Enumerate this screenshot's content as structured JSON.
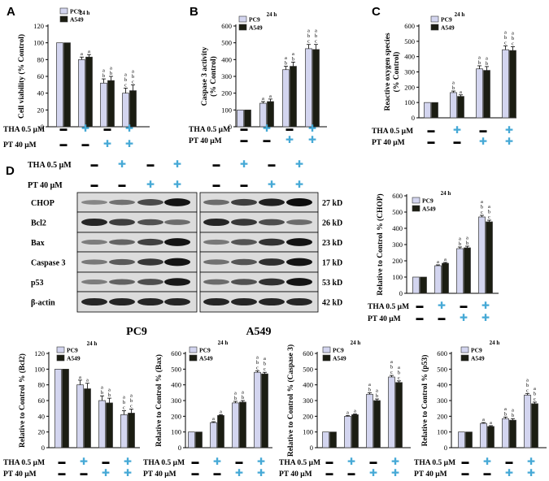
{
  "panel_labels": [
    "A",
    "B",
    "C",
    "D"
  ],
  "conditions": {
    "tha_label": "THA 0.5 μM",
    "pt_label": "PT 40 μM",
    "minus": "▬",
    "plus": "✚",
    "tha": [
      "-",
      "+",
      "-",
      "+"
    ],
    "pt": [
      "-",
      "-",
      "+",
      "+"
    ]
  },
  "legend": {
    "series": [
      "PC9",
      "A549"
    ]
  },
  "colors": {
    "pc9": "#d3d5ef",
    "a549": "#1b1d12",
    "plus": "#46a9d6",
    "minus": "#000000"
  },
  "blot": {
    "proteins": [
      "CHOP",
      "Bcl2",
      "Bax",
      "Caspase 3",
      "p53",
      "β-actin"
    ],
    "sizes": [
      "27 kD",
      "26 kD",
      "23 kD",
      "17 kD",
      "53 kD",
      "42 kD"
    ],
    "cell_lines": [
      "PC9",
      "A549"
    ],
    "intensity": {
      "PC9": [
        [
          0.3,
          0.42,
          0.65,
          0.95
        ],
        [
          0.85,
          0.72,
          0.6,
          0.45
        ],
        [
          0.35,
          0.5,
          0.7,
          0.95
        ],
        [
          0.38,
          0.55,
          0.75,
          0.95
        ],
        [
          0.35,
          0.5,
          0.62,
          0.92
        ],
        [
          0.85,
          0.85,
          0.85,
          0.85
        ]
      ],
      "A549": [
        [
          0.45,
          0.7,
          0.88,
          1.0
        ],
        [
          0.85,
          0.75,
          0.62,
          0.45
        ],
        [
          0.38,
          0.58,
          0.78,
          0.95
        ],
        [
          0.42,
          0.58,
          0.8,
          0.95
        ],
        [
          0.45,
          0.6,
          0.78,
          0.95
        ],
        [
          0.85,
          0.85,
          0.85,
          0.85
        ]
      ]
    }
  },
  "chart_data": [
    {
      "id": "A",
      "type": "bar",
      "title": "24 h",
      "xlabel": "",
      "ylabel": "Cell viability (% Control)",
      "ylim": [
        0,
        120
      ],
      "yticks": [
        "0",
        "20",
        "40",
        "60",
        "80",
        "100",
        "120"
      ],
      "series": [
        {
          "name": "PC9",
          "values": [
            100,
            80,
            52,
            40
          ],
          "errors": [
            0,
            3,
            5,
            6
          ],
          "letters": [
            [],
            [
              "a"
            ],
            [
              "a",
              "b"
            ],
            [
              "a",
              "b",
              "c"
            ]
          ]
        },
        {
          "name": "A549",
          "values": [
            100,
            83,
            55,
            43
          ],
          "errors": [
            0,
            3,
            5,
            7
          ],
          "letters": [
            [],
            [
              "a"
            ],
            [
              "a",
              "b"
            ],
            [
              "a",
              "b",
              "c"
            ]
          ]
        }
      ]
    },
    {
      "id": "B",
      "type": "bar",
      "title": "24 h",
      "xlabel": "",
      "ylabel": "Caspase 3 activity (% Control)",
      "ylim": [
        0,
        600
      ],
      "yticks": [
        "0",
        "100",
        "200",
        "300",
        "400",
        "500",
        "600"
      ],
      "series": [
        {
          "name": "PC9",
          "values": [
            100,
            140,
            340,
            465
          ],
          "errors": [
            0,
            10,
            20,
            25
          ],
          "letters": [
            [],
            [
              "a"
            ],
            [
              "a",
              "b"
            ],
            [
              "a",
              "b",
              "c"
            ]
          ]
        },
        {
          "name": "A549",
          "values": [
            100,
            150,
            360,
            460
          ],
          "errors": [
            0,
            15,
            25,
            30
          ],
          "letters": [
            [],
            [
              "a"
            ],
            [
              "a",
              "b"
            ],
            [
              "a",
              "b",
              "c"
            ]
          ]
        }
      ]
    },
    {
      "id": "C",
      "type": "bar",
      "title": "24 h",
      "xlabel": "",
      "ylabel": "Reactive oxygen species (% Control)",
      "ylim": [
        0,
        600
      ],
      "yticks": [
        "0",
        "100",
        "200",
        "300",
        "400",
        "500",
        "600"
      ],
      "series": [
        {
          "name": "PC9",
          "values": [
            100,
            165,
            320,
            445
          ],
          "errors": [
            0,
            10,
            20,
            25
          ],
          "letters": [
            [],
            [
              "a",
              "b"
            ],
            [
              "a",
              "b"
            ],
            [
              "a",
              "b",
              "c"
            ]
          ]
        },
        {
          "name": "A549",
          "values": [
            100,
            140,
            310,
            440
          ],
          "errors": [
            0,
            10,
            25,
            25
          ],
          "letters": [
            [],
            [
              "a"
            ],
            [
              "a",
              "b"
            ],
            [
              "a",
              "b",
              "c"
            ]
          ]
        }
      ]
    },
    {
      "id": "CHOP",
      "type": "bar",
      "title": "24 h",
      "xlabel": "",
      "ylabel": "Relative to Control % (CHOP)",
      "ylim": [
        0,
        600
      ],
      "yticks": [
        "0",
        "100",
        "200",
        "300",
        "400",
        "500",
        "600"
      ],
      "series": [
        {
          "name": "PC9",
          "values": [
            100,
            170,
            275,
            470
          ],
          "errors": [
            0,
            5,
            10,
            10
          ],
          "letters": [
            [],
            [
              "a"
            ],
            [
              "a",
              "b"
            ],
            [
              "a",
              "b",
              "c"
            ]
          ]
        },
        {
          "name": "A549",
          "values": [
            100,
            185,
            280,
            440
          ],
          "errors": [
            0,
            5,
            10,
            10
          ],
          "letters": [
            [],
            [
              "a"
            ],
            [
              "a",
              "b"
            ],
            [
              "a",
              "b",
              "c"
            ]
          ]
        }
      ]
    },
    {
      "id": "Bcl2",
      "type": "bar",
      "title": "24 h",
      "xlabel": "",
      "ylabel": "Relative to Control % (Bcl2)",
      "ylim": [
        0,
        120
      ],
      "yticks": [
        "0",
        "20",
        "40",
        "60",
        "80",
        "100",
        "120"
      ],
      "series": [
        {
          "name": "PC9",
          "values": [
            100,
            80,
            60,
            42
          ],
          "errors": [
            0,
            6,
            6,
            5
          ],
          "letters": [
            [],
            [
              "a"
            ],
            [
              "a",
              "b"
            ],
            [
              "a",
              "b",
              "c"
            ]
          ]
        },
        {
          "name": "A549",
          "values": [
            100,
            75,
            57,
            44
          ],
          "errors": [
            0,
            7,
            6,
            5
          ],
          "letters": [
            [],
            [
              "a"
            ],
            [
              "a",
              "b"
            ],
            [
              "a",
              "b",
              "c"
            ]
          ]
        }
      ]
    },
    {
      "id": "Bax",
      "type": "bar",
      "title": "24 h",
      "xlabel": "",
      "ylabel": "Relative to Control % (Bax)",
      "ylim": [
        0,
        600
      ],
      "yticks": [
        "0",
        "100",
        "200",
        "300",
        "400",
        "500",
        "600"
      ],
      "series": [
        {
          "name": "PC9",
          "values": [
            100,
            160,
            285,
            480
          ],
          "errors": [
            0,
            5,
            10,
            10
          ],
          "letters": [
            [],
            [
              "a"
            ],
            [
              "a",
              "b"
            ],
            [
              "a",
              "b",
              "c"
            ]
          ]
        },
        {
          "name": "A549",
          "values": [
            100,
            205,
            290,
            470
          ],
          "errors": [
            0,
            5,
            10,
            10
          ],
          "letters": [
            [],
            [
              "a"
            ],
            [
              "a",
              "b"
            ],
            [
              "a",
              "b",
              "c"
            ]
          ]
        }
      ]
    },
    {
      "id": "Caspase3",
      "type": "bar",
      "title": "24 h",
      "xlabel": "",
      "ylabel": "Relative to Control % (Caspase 3)",
      "ylim": [
        0,
        600
      ],
      "yticks": [
        "0",
        "100",
        "200",
        "300",
        "400",
        "500",
        "600"
      ],
      "series": [
        {
          "name": "PC9",
          "values": [
            100,
            200,
            340,
            450
          ],
          "errors": [
            0,
            5,
            10,
            10
          ],
          "letters": [
            [],
            [
              "a"
            ],
            [
              "a",
              "b"
            ],
            [
              "a",
              "b",
              "c"
            ]
          ]
        },
        {
          "name": "A549",
          "values": [
            100,
            210,
            300,
            415
          ],
          "errors": [
            0,
            5,
            10,
            10
          ],
          "letters": [
            [],
            [
              "a"
            ],
            [
              "a",
              "b"
            ],
            [
              "a",
              "b",
              "c"
            ]
          ]
        }
      ]
    },
    {
      "id": "p53",
      "type": "bar",
      "title": "24 h",
      "xlabel": "",
      "ylabel": "Relative to Control % (p53)",
      "ylim": [
        0,
        600
      ],
      "yticks": [
        "0",
        "100",
        "200",
        "300",
        "400",
        "500",
        "600"
      ],
      "series": [
        {
          "name": "PC9",
          "values": [
            100,
            155,
            185,
            335
          ],
          "errors": [
            0,
            5,
            10,
            10
          ],
          "letters": [
            [],
            [
              "a"
            ],
            [
              "a",
              "b"
            ],
            [
              "a",
              "b",
              "c"
            ]
          ]
        },
        {
          "name": "A549",
          "values": [
            100,
            135,
            175,
            280
          ],
          "errors": [
            0,
            5,
            10,
            10
          ],
          "letters": [
            [],
            [
              "a"
            ],
            [
              "a",
              "b"
            ],
            [
              "a",
              "b",
              "c"
            ]
          ]
        }
      ]
    }
  ]
}
